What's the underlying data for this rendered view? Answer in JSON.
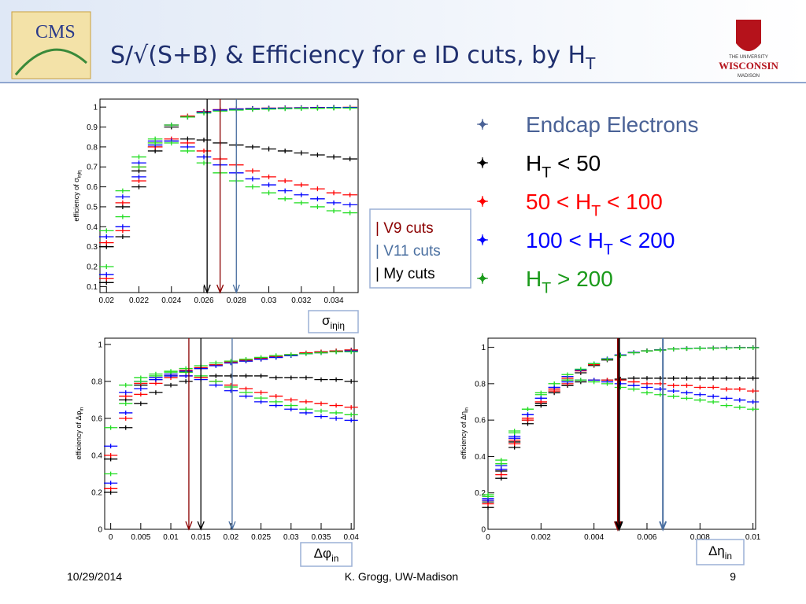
{
  "header": {
    "logo": "CMS",
    "title": {
      "pre": "S/√(S+B) & Efficiency for e ID cuts, by H",
      "sub": "T"
    },
    "university": {
      "top": "THE UNIVERSITY",
      "name": "WISCONSIN",
      "bottom": "MADISON"
    }
  },
  "legend": [
    {
      "pre": "Endcap Electrons",
      "color": "#4a6296"
    },
    {
      "pre": "H",
      "sub": "T",
      "post": " < 50",
      "color": "#000000"
    },
    {
      "pre": "50 < H",
      "sub": "T",
      "post": " < 100",
      "color": "#ff0000"
    },
    {
      "pre": "100 < H",
      "sub": "T",
      "post": " < 200",
      "color": "#0000ff"
    },
    {
      "pre": "H",
      "sub": "T",
      "post": " > 200",
      "color": "#1a9a1a"
    }
  ],
  "cuts_box": [
    {
      "text": "| V9 cuts",
      "color": "#8b0000"
    },
    {
      "text": "| V11 cuts",
      "color": "#4a6fa0"
    },
    {
      "text": "| My cuts",
      "color": "#000000"
    }
  ],
  "chart_data": [
    {
      "type": "scatter",
      "ylabel": {
        "pre": "efficiency of σ",
        "sub": "iηiη"
      },
      "varlabel": {
        "pre": "σ",
        "sub": "iηiη"
      },
      "xlim": [
        0.0196,
        0.0355
      ],
      "ylim": [
        0.07,
        1.04
      ],
      "xticks": [
        0.02,
        0.022,
        0.024,
        0.026,
        0.028,
        0.03,
        0.032,
        0.034
      ],
      "yticks": [
        0.1,
        0.2,
        0.3,
        0.4,
        0.5,
        0.6,
        0.7,
        0.8,
        0.9,
        1
      ],
      "x": [
        0.02,
        0.021,
        0.022,
        0.023,
        0.024,
        0.025,
        0.026,
        0.027,
        0.028,
        0.029,
        0.03,
        0.031,
        0.032,
        0.033,
        0.034,
        0.035
      ],
      "series": [
        {
          "color": "#000000",
          "values": [
            0.3,
            0.5,
            0.68,
            0.8,
            0.9,
            0.95,
            0.975,
            0.985,
            0.99,
            0.992,
            0.994,
            0.995,
            0.996,
            0.997,
            0.998,
            0.998
          ]
        },
        {
          "color": "#ff0000",
          "values": [
            0.32,
            0.52,
            0.7,
            0.82,
            0.91,
            0.955,
            0.978,
            0.987,
            0.991,
            0.993,
            0.995,
            0.996,
            0.997,
            0.998,
            0.998,
            0.999
          ]
        },
        {
          "color": "#0000ff",
          "values": [
            0.35,
            0.55,
            0.72,
            0.83,
            0.91,
            0.95,
            0.975,
            0.985,
            0.99,
            0.992,
            0.994,
            0.995,
            0.996,
            0.997,
            0.998,
            0.998
          ]
        },
        {
          "color": "#22dd22",
          "values": [
            0.38,
            0.58,
            0.75,
            0.84,
            0.91,
            0.95,
            0.97,
            0.98,
            0.985,
            0.988,
            0.99,
            0.992,
            0.993,
            0.994,
            0.995,
            0.995
          ]
        },
        {
          "color": "#000000",
          "values": [
            0.12,
            0.35,
            0.6,
            0.78,
            0.83,
            0.84,
            0.835,
            0.82,
            0.81,
            0.8,
            0.79,
            0.78,
            0.77,
            0.76,
            0.75,
            0.74
          ]
        },
        {
          "color": "#ff0000",
          "values": [
            0.14,
            0.38,
            0.63,
            0.8,
            0.84,
            0.82,
            0.78,
            0.74,
            0.71,
            0.68,
            0.65,
            0.63,
            0.61,
            0.59,
            0.57,
            0.56
          ]
        },
        {
          "color": "#0000ff",
          "values": [
            0.16,
            0.4,
            0.65,
            0.81,
            0.83,
            0.8,
            0.75,
            0.71,
            0.67,
            0.64,
            0.61,
            0.58,
            0.56,
            0.54,
            0.52,
            0.51
          ]
        },
        {
          "color": "#22dd22",
          "values": [
            0.2,
            0.45,
            0.7,
            0.82,
            0.82,
            0.78,
            0.72,
            0.67,
            0.63,
            0.6,
            0.57,
            0.54,
            0.52,
            0.5,
            0.48,
            0.47
          ]
        }
      ],
      "cuts": [
        {
          "color": "#000000",
          "x": 0.0262
        },
        {
          "color": "#8b0000",
          "x": 0.027
        },
        {
          "color": "#4a6fa0",
          "x": 0.028
        }
      ]
    },
    {
      "type": "scatter",
      "ylabel": {
        "pre": "efficiency of Δφ",
        "sub": "in"
      },
      "varlabel": {
        "pre": "Δφ",
        "sub": "in"
      },
      "xlim": [
        -0.001,
        0.0405
      ],
      "ylim": [
        0,
        1.034
      ],
      "xticks": [
        0,
        0.005,
        0.01,
        0.015,
        0.02,
        0.025,
        0.03,
        0.035,
        0.04
      ],
      "yticks": [
        0,
        0.2,
        0.4,
        0.6,
        0.8,
        1
      ],
      "x": [
        0,
        0.0025,
        0.005,
        0.0075,
        0.01,
        0.0125,
        0.015,
        0.0175,
        0.02,
        0.0225,
        0.025,
        0.0275,
        0.03,
        0.0325,
        0.035,
        0.0375,
        0.04
      ],
      "series": [
        {
          "color": "#000000",
          "values": [
            0.38,
            0.7,
            0.78,
            0.81,
            0.83,
            0.85,
            0.87,
            0.89,
            0.9,
            0.91,
            0.92,
            0.93,
            0.94,
            0.95,
            0.96,
            0.965,
            0.97
          ]
        },
        {
          "color": "#ff0000",
          "values": [
            0.4,
            0.72,
            0.79,
            0.82,
            0.84,
            0.86,
            0.875,
            0.89,
            0.905,
            0.915,
            0.925,
            0.935,
            0.945,
            0.955,
            0.96,
            0.965,
            0.97
          ]
        },
        {
          "color": "#0000ff",
          "values": [
            0.45,
            0.74,
            0.8,
            0.82,
            0.84,
            0.855,
            0.87,
            0.885,
            0.9,
            0.91,
            0.92,
            0.93,
            0.94,
            0.95,
            0.955,
            0.96,
            0.965
          ]
        },
        {
          "color": "#22dd22",
          "values": [
            0.55,
            0.78,
            0.82,
            0.84,
            0.855,
            0.87,
            0.885,
            0.9,
            0.91,
            0.92,
            0.93,
            0.94,
            0.945,
            0.95,
            0.955,
            0.96,
            0.96
          ]
        },
        {
          "color": "#000000",
          "values": [
            0.2,
            0.55,
            0.68,
            0.74,
            0.78,
            0.8,
            0.82,
            0.83,
            0.83,
            0.83,
            0.83,
            0.82,
            0.82,
            0.82,
            0.81,
            0.81,
            0.8
          ]
        },
        {
          "color": "#ff0000",
          "values": [
            0.22,
            0.6,
            0.73,
            0.79,
            0.82,
            0.83,
            0.82,
            0.8,
            0.78,
            0.76,
            0.74,
            0.72,
            0.7,
            0.69,
            0.68,
            0.67,
            0.66
          ]
        },
        {
          "color": "#0000ff",
          "values": [
            0.25,
            0.63,
            0.76,
            0.81,
            0.83,
            0.83,
            0.81,
            0.78,
            0.75,
            0.72,
            0.69,
            0.67,
            0.65,
            0.63,
            0.61,
            0.6,
            0.59
          ]
        },
        {
          "color": "#22dd22",
          "values": [
            0.3,
            0.68,
            0.8,
            0.83,
            0.85,
            0.85,
            0.83,
            0.8,
            0.77,
            0.74,
            0.71,
            0.69,
            0.67,
            0.65,
            0.64,
            0.63,
            0.62
          ]
        }
      ],
      "cuts": [
        {
          "color": "#8b0000",
          "x": 0.013
        },
        {
          "color": "#000000",
          "x": 0.015
        },
        {
          "color": "#4a6fa0",
          "x": 0.0202
        }
      ]
    },
    {
      "type": "scatter",
      "ylabel": {
        "pre": "efficiency of Δη",
        "sub": "in"
      },
      "varlabel": {
        "pre": "Δη",
        "sub": "in"
      },
      "xlim": [
        0,
        0.0101
      ],
      "ylim": [
        0,
        1.05
      ],
      "xticks": [
        0,
        0.002,
        0.004,
        0.006,
        0.008,
        0.01
      ],
      "yticks": [
        0,
        0.2,
        0.4,
        0.6,
        0.8,
        1
      ],
      "x": [
        0,
        0.0005,
        0.001,
        0.0015,
        0.002,
        0.0025,
        0.003,
        0.0035,
        0.004,
        0.0045,
        0.005,
        0.0055,
        0.006,
        0.0065,
        0.007,
        0.0075,
        0.008,
        0.0085,
        0.009,
        0.0095,
        0.01
      ],
      "series": [
        {
          "color": "#000000",
          "values": [
            0.15,
            0.32,
            0.48,
            0.6,
            0.69,
            0.76,
            0.82,
            0.86,
            0.9,
            0.93,
            0.955,
            0.97,
            0.98,
            0.985,
            0.99,
            0.993,
            0.995,
            0.996,
            0.997,
            0.998,
            0.998
          ]
        },
        {
          "color": "#ff0000",
          "values": [
            0.16,
            0.33,
            0.49,
            0.61,
            0.7,
            0.77,
            0.83,
            0.87,
            0.905,
            0.935,
            0.957,
            0.972,
            0.981,
            0.986,
            0.99,
            0.993,
            0.995,
            0.996,
            0.997,
            0.998,
            0.998
          ]
        },
        {
          "color": "#0000ff",
          "values": [
            0.17,
            0.35,
            0.51,
            0.63,
            0.72,
            0.78,
            0.84,
            0.875,
            0.91,
            0.937,
            0.958,
            0.972,
            0.981,
            0.986,
            0.99,
            0.993,
            0.995,
            0.996,
            0.997,
            0.998,
            0.998
          ]
        },
        {
          "color": "#22dd22",
          "values": [
            0.19,
            0.38,
            0.54,
            0.66,
            0.74,
            0.8,
            0.85,
            0.88,
            0.91,
            0.935,
            0.955,
            0.97,
            0.98,
            0.985,
            0.99,
            0.992,
            0.994,
            0.995,
            0.996,
            0.997,
            0.997
          ]
        },
        {
          "color": "#000000",
          "values": [
            0.12,
            0.28,
            0.45,
            0.58,
            0.68,
            0.75,
            0.79,
            0.81,
            0.82,
            0.82,
            0.825,
            0.83,
            0.83,
            0.83,
            0.83,
            0.83,
            0.83,
            0.83,
            0.83,
            0.83,
            0.83
          ]
        },
        {
          "color": "#ff0000",
          "values": [
            0.14,
            0.3,
            0.47,
            0.6,
            0.7,
            0.76,
            0.8,
            0.82,
            0.82,
            0.82,
            0.82,
            0.81,
            0.8,
            0.8,
            0.79,
            0.79,
            0.78,
            0.78,
            0.77,
            0.77,
            0.76
          ]
        },
        {
          "color": "#0000ff",
          "values": [
            0.16,
            0.33,
            0.5,
            0.63,
            0.72,
            0.78,
            0.81,
            0.82,
            0.82,
            0.81,
            0.8,
            0.79,
            0.78,
            0.77,
            0.76,
            0.75,
            0.74,
            0.73,
            0.72,
            0.71,
            0.7
          ]
        },
        {
          "color": "#22dd22",
          "values": [
            0.18,
            0.36,
            0.53,
            0.66,
            0.75,
            0.8,
            0.82,
            0.82,
            0.81,
            0.8,
            0.78,
            0.77,
            0.75,
            0.74,
            0.73,
            0.72,
            0.71,
            0.7,
            0.68,
            0.67,
            0.66
          ]
        }
      ],
      "cuts": [
        {
          "color": "#8b0000",
          "x": 0.0049
        },
        {
          "color": "#000000",
          "x": 0.00495
        },
        {
          "color": "#4a6fa0",
          "x": 0.0066
        }
      ]
    }
  ],
  "footer": {
    "date": "10/29/2014",
    "author": "K. Grogg, UW-Madison",
    "page": "9"
  }
}
